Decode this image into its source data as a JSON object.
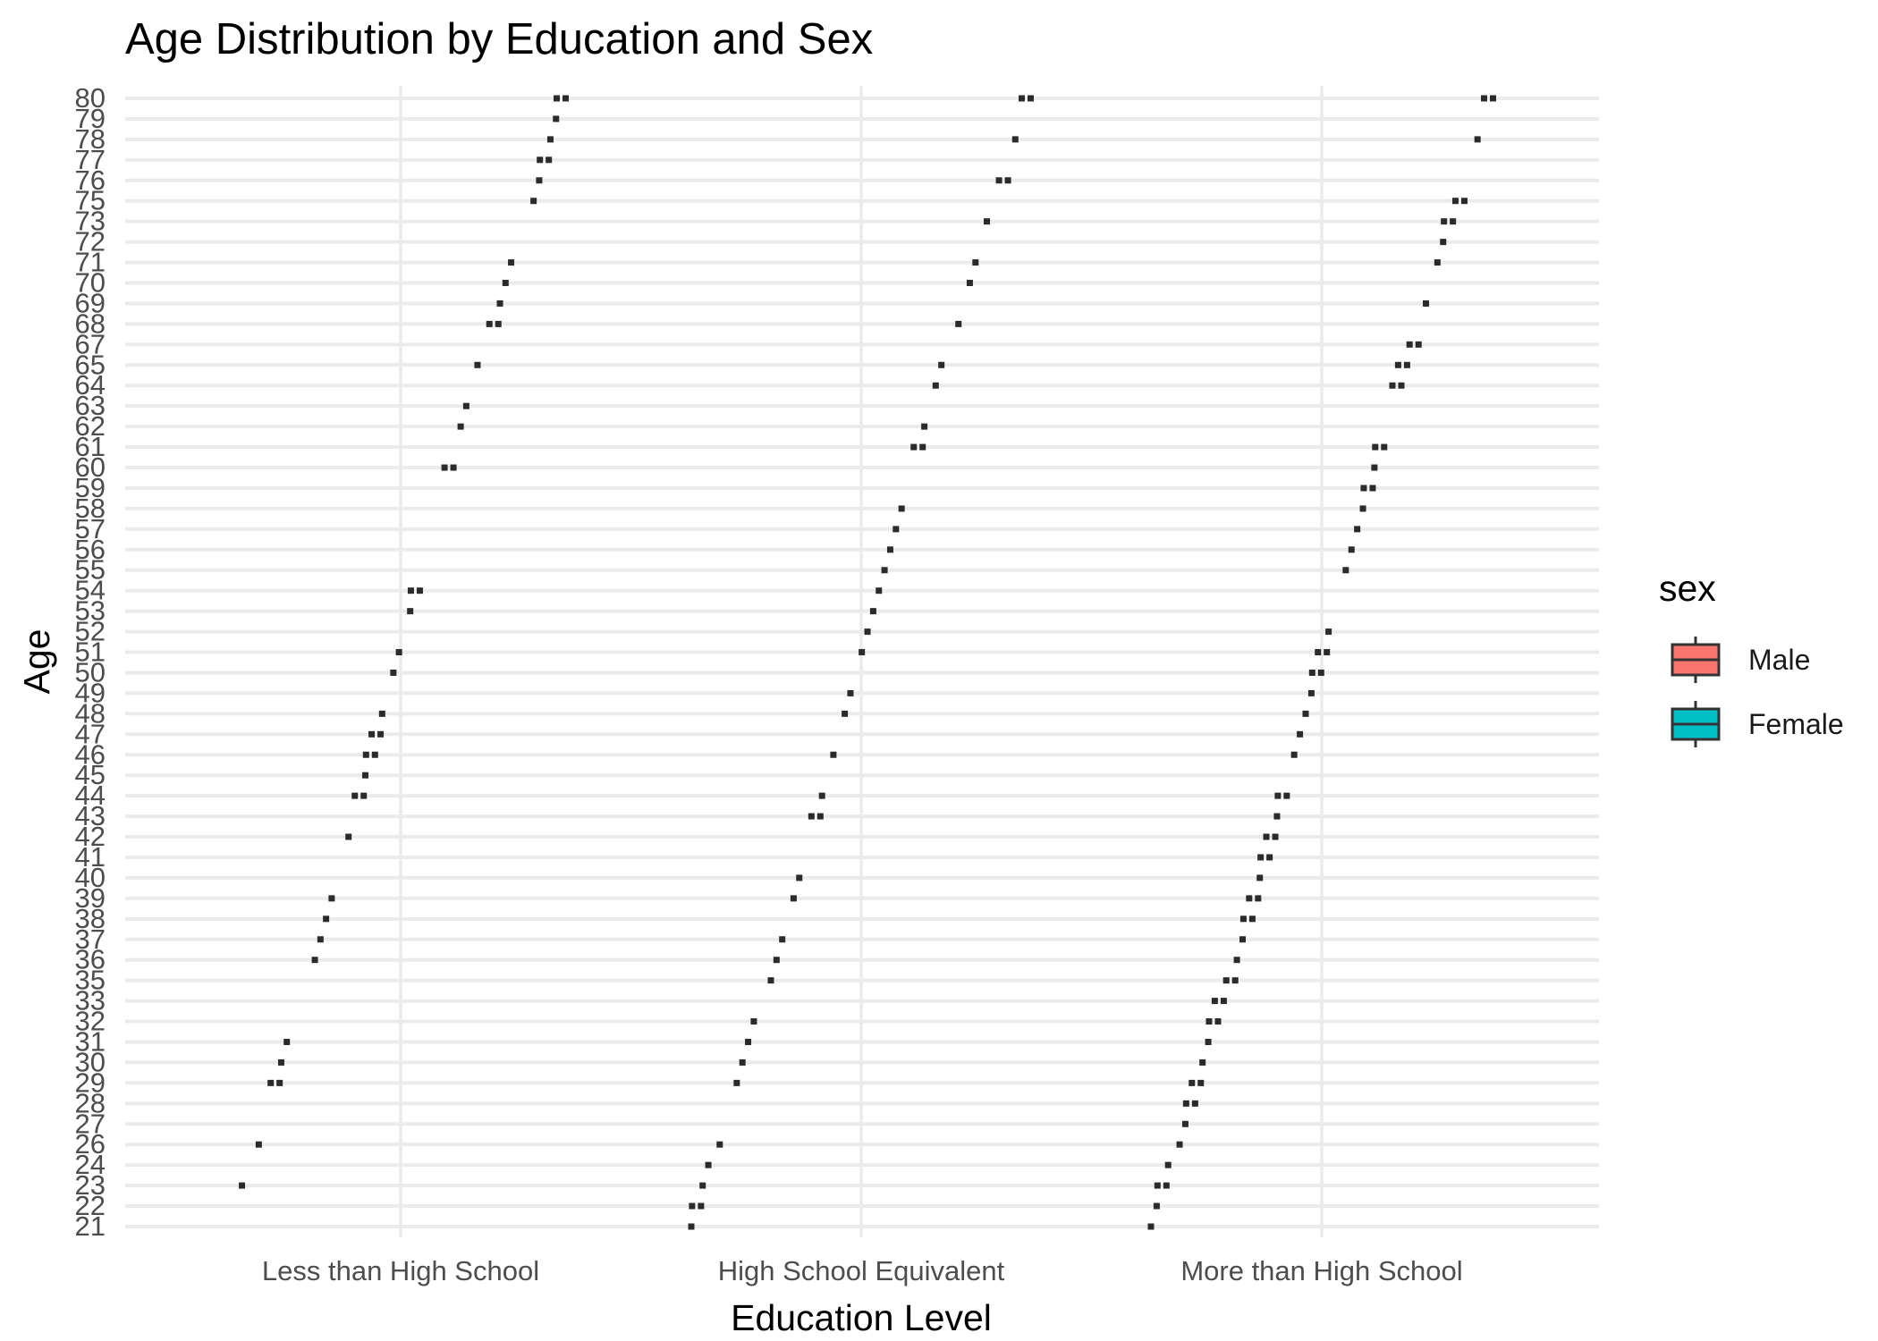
{
  "chart_data": {
    "type": "boxplot",
    "title": "Age Distribution by Education and Sex",
    "xlabel": "Education Level",
    "ylabel": "Age",
    "categories": [
      "Less than High School",
      "High School Equivalent",
      "More than High School"
    ],
    "y_ticks": [
      21,
      22,
      23,
      24,
      26,
      27,
      28,
      29,
      30,
      31,
      32,
      33,
      35,
      36,
      37,
      38,
      39,
      40,
      41,
      42,
      43,
      44,
      45,
      46,
      47,
      48,
      49,
      50,
      51,
      52,
      53,
      54,
      55,
      56,
      57,
      58,
      59,
      60,
      61,
      62,
      63,
      64,
      65,
      67,
      68,
      69,
      70,
      71,
      72,
      73,
      75,
      76,
      77,
      78,
      79,
      80
    ],
    "grid": true,
    "legend": {
      "title": "sex",
      "position": "right",
      "items": [
        {
          "label": "Male",
          "color": "#F8766D"
        },
        {
          "label": "Female",
          "color": "#00BFC4"
        }
      ]
    },
    "series": [
      {
        "name": "Less than High School",
        "ages": [
          23,
          26,
          29,
          30,
          31,
          36,
          37,
          38,
          39,
          42,
          44,
          45,
          46,
          47,
          48,
          50,
          51,
          53,
          54,
          60,
          62,
          63,
          65,
          68,
          69,
          70,
          71,
          75,
          76,
          77,
          78,
          79,
          80
        ]
      },
      {
        "name": "High School Equivalent",
        "ages": [
          21,
          22,
          23,
          24,
          26,
          29,
          30,
          31,
          32,
          35,
          36,
          37,
          39,
          40,
          43,
          44,
          46,
          48,
          49,
          51,
          52,
          53,
          54,
          55,
          56,
          57,
          58,
          61,
          62,
          64,
          65,
          68,
          70,
          71,
          73,
          76,
          78,
          80
        ]
      },
      {
        "name": "More than High School",
        "ages": [
          21,
          22,
          23,
          24,
          26,
          27,
          28,
          29,
          30,
          31,
          32,
          33,
          35,
          36,
          37,
          38,
          39,
          40,
          41,
          42,
          43,
          44,
          46,
          47,
          48,
          49,
          50,
          51,
          52,
          55,
          56,
          57,
          58,
          59,
          60,
          61,
          64,
          65,
          67,
          69,
          71,
          72,
          73,
          75,
          78,
          80
        ]
      }
    ],
    "paired_ages": {
      "Less than High School": [
        29,
        44,
        46,
        47,
        54,
        60,
        68,
        77,
        80
      ],
      "High School Equivalent": [
        22,
        43,
        61,
        76,
        80
      ],
      "More than High School": [
        23,
        28,
        29,
        32,
        33,
        35,
        38,
        39,
        41,
        42,
        44,
        50,
        51,
        59,
        61,
        64,
        65,
        67,
        73,
        75,
        80
      ]
    }
  }
}
